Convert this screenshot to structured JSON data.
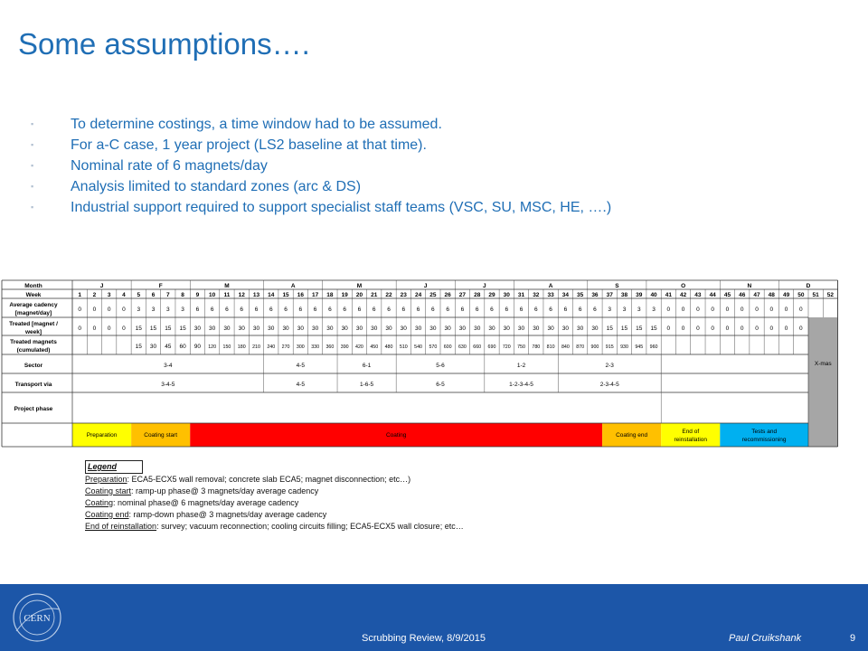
{
  "slide": {
    "title": "Some assumptions….",
    "bullets": [
      "To determine costings, a time window had to be assumed.",
      "For a-C case, 1 year project (LS2 baseline at that time).",
      "Nominal rate of 6 magnets/day",
      "Analysis limited to standard zones (arc & DS)",
      "Industrial support required to support specialist staff teams (VSC, SU, MSC, HE, ….)"
    ]
  },
  "colors": {
    "title": "#1f6eb5",
    "footer_bg": "#1c56a8",
    "preparation": "#ffff00",
    "coating_start": "#ffc000",
    "coating": "#ff0000",
    "coating_end": "#ffc000",
    "end_reinstallation": "#ffff00",
    "tests": "#00b0f0",
    "xmas": "#a6a6a6"
  },
  "schedule": {
    "labels": {
      "month": "Month",
      "week": "Week",
      "avg_cadency": [
        "Average cadency",
        "[magnet/day]"
      ],
      "treated_week": [
        "Treated [magnet /",
        "week]"
      ],
      "treated_cum": [
        "Treated magnets",
        "(cumulated)"
      ],
      "sector": "Sector",
      "transport": "Transport via",
      "phase": "Project phase"
    },
    "months": [
      {
        "label": "J",
        "from": 1,
        "to": 4
      },
      {
        "label": "F",
        "from": 5,
        "to": 8
      },
      {
        "label": "M",
        "from": 9,
        "to": 13
      },
      {
        "label": "A",
        "from": 14,
        "to": 17
      },
      {
        "label": "M",
        "from": 18,
        "to": 22
      },
      {
        "label": "J",
        "from": 23,
        "to": 26
      },
      {
        "label": "J",
        "from": 27,
        "to": 30
      },
      {
        "label": "A",
        "from": 31,
        "to": 35
      },
      {
        "label": "S",
        "from": 36,
        "to": 39
      },
      {
        "label": "O",
        "from": 40,
        "to": 44
      },
      {
        "label": "N",
        "from": 45,
        "to": 48
      },
      {
        "label": "D",
        "from": 49,
        "to": 52
      }
    ],
    "weeks": [
      "1",
      "2",
      "3",
      "4",
      "5",
      "6",
      "7",
      "8",
      "9",
      "10",
      "11",
      "12",
      "13",
      "14",
      "15",
      "16",
      "17",
      "18",
      "19",
      "20",
      "21",
      "22",
      "23",
      "24",
      "25",
      "26",
      "27",
      "28",
      "29",
      "30",
      "31",
      "32",
      "33",
      "34",
      "35",
      "36",
      "37",
      "38",
      "39",
      "40",
      "41",
      "42",
      "43",
      "44",
      "45",
      "46",
      "47",
      "48",
      "49",
      "50",
      "51",
      "52"
    ],
    "avg_cadency": [
      "0",
      "0",
      "0",
      "0",
      "3",
      "3",
      "3",
      "3",
      "6",
      "6",
      "6",
      "6",
      "6",
      "6",
      "6",
      "6",
      "6",
      "6",
      "6",
      "6",
      "6",
      "6",
      "6",
      "6",
      "6",
      "6",
      "6",
      "6",
      "6",
      "6",
      "6",
      "6",
      "6",
      "6",
      "6",
      "6",
      "3",
      "3",
      "3",
      "3",
      "0",
      "0",
      "0",
      "0",
      "0",
      "0",
      "0",
      "0",
      "0",
      "0",
      "",
      ""
    ],
    "treated_week": [
      "0",
      "0",
      "0",
      "0",
      "15",
      "15",
      "15",
      "15",
      "30",
      "30",
      "30",
      "30",
      "30",
      "30",
      "30",
      "30",
      "30",
      "30",
      "30",
      "30",
      "30",
      "30",
      "30",
      "30",
      "30",
      "30",
      "30",
      "30",
      "30",
      "30",
      "30",
      "30",
      "30",
      "30",
      "30",
      "30",
      "15",
      "15",
      "15",
      "15",
      "0",
      "0",
      "0",
      "0",
      "0",
      "0",
      "0",
      "0",
      "0",
      "0",
      "",
      ""
    ],
    "treated_cum": [
      "",
      "",
      "",
      "",
      "15",
      "30",
      "45",
      "60",
      "90",
      "120",
      "150",
      "180",
      "210",
      "240",
      "270",
      "300",
      "330",
      "360",
      "390",
      "420",
      "450",
      "480",
      "510",
      "540",
      "570",
      "600",
      "630",
      "660",
      "690",
      "720",
      "750",
      "780",
      "810",
      "840",
      "870",
      "900",
      "915",
      "930",
      "945",
      "960",
      "",
      "",
      "",
      "",
      "",
      "",
      "",
      "",
      "",
      "",
      "",
      ""
    ],
    "sectors": [
      {
        "label": "3-4",
        "from": 1,
        "to": 13
      },
      {
        "label": "4-5",
        "from": 14,
        "to": 18
      },
      {
        "label": "6-1",
        "from": 19,
        "to": 22
      },
      {
        "label": "5-6",
        "from": 23,
        "to": 28
      },
      {
        "label": "1-2",
        "from": 29,
        "to": 33
      },
      {
        "label": "2-3",
        "from": 34,
        "to": 40
      }
    ],
    "transports": [
      {
        "label": "3-4-5",
        "from": 1,
        "to": 13
      },
      {
        "label": "4-5",
        "from": 14,
        "to": 18
      },
      {
        "label": "1-6-5",
        "from": 19,
        "to": 22
      },
      {
        "label": "6-5",
        "from": 23,
        "to": 28
      },
      {
        "label": "1-2-3-4-5",
        "from": 29,
        "to": 33
      },
      {
        "label": "2-3-4-5",
        "from": 34,
        "to": 40
      }
    ],
    "phases": [
      {
        "label": "Preparation",
        "from": 1,
        "to": 4,
        "color": "#ffff00"
      },
      {
        "label": "Coating start",
        "from": 5,
        "to": 8,
        "color": "#ffc000"
      },
      {
        "label": "Coating",
        "from": 9,
        "to": 36,
        "color": "#ff0000"
      },
      {
        "label": "Coating end",
        "from": 37,
        "to": 40,
        "color": "#ffc000"
      },
      {
        "label": "End of reinstallation",
        "from": 41,
        "to": 44,
        "color": "#ffff00"
      },
      {
        "label": "Tests and recommissioning",
        "from": 45,
        "to": 50,
        "color": "#00b0f0"
      }
    ],
    "xmas_label": "X-mas"
  },
  "legend": {
    "heading": "Legend",
    "items": [
      {
        "term": "Preparation",
        "text": ": ECA5-ECX5 wall removal; concrete slab ECA5; magnet disconnection; etc…)"
      },
      {
        "term": "Coating start",
        "text": ": ramp-up phase@ 3 magnets/day average cadency"
      },
      {
        "term": "Coating",
        "text": ": nominal phase@ 6 magnets/day average cadency"
      },
      {
        "term": "Coating end",
        "text": ": ramp-down phase@ 3 magnets/day average cadency"
      },
      {
        "term": "End of reinstallation",
        "text": ": survey; vacuum reconnection; cooling circuits filling; ECA5-ECX5 wall closure; etc…"
      }
    ]
  },
  "footer": {
    "logo_text": "CERN",
    "center": "Scrubbing Review, 8/9/2015",
    "author": "Paul Cruikshank",
    "page": "9"
  }
}
